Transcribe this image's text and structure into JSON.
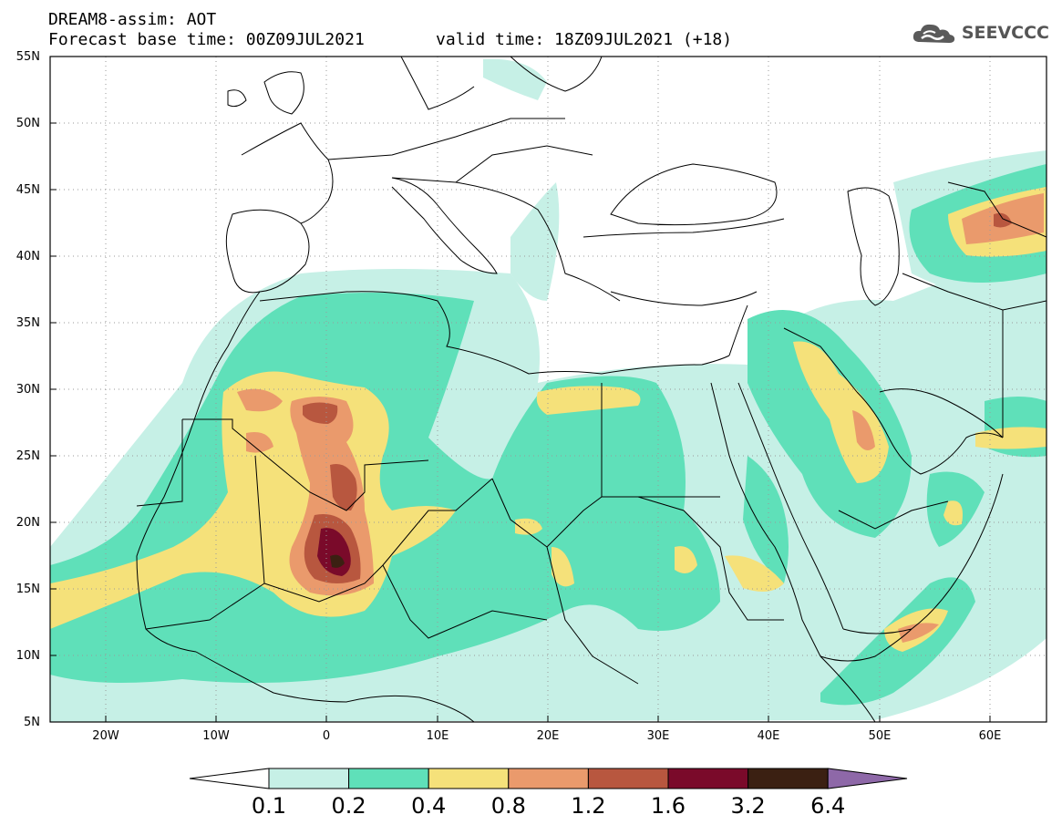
{
  "header": {
    "title": "DREAM8-assim: AOT",
    "base_time": "Forecast base time: 00Z09JUL2021",
    "valid_time": "valid time: 18Z09JUL2021 (+18)",
    "logo": "SEEVCCC"
  },
  "axes": {
    "lat_labels": [
      "55N",
      "50N",
      "45N",
      "40N",
      "35N",
      "30N",
      "25N",
      "20N",
      "15N",
      "10N",
      "5N"
    ],
    "lon_labels": [
      "20W",
      "10W",
      "0",
      "10E",
      "20E",
      "30E",
      "40E",
      "50E",
      "60E"
    ]
  },
  "colorbar": {
    "labels": [
      "0.1",
      "0.2",
      "0.4",
      "0.8",
      "1.2",
      "1.6",
      "3.2",
      "6.4"
    ],
    "colors": [
      "#c6f0e6",
      "#5fe0b9",
      "#f5e17a",
      "#ea9a6c",
      "#b8573f",
      "#7a0a2a",
      "#3b2012",
      "#8e68a8"
    ],
    "low_color": "#ffffff"
  },
  "map": {
    "lon_range": [
      -25,
      65
    ],
    "lat_range": [
      5,
      55
    ],
    "grid": true
  }
}
